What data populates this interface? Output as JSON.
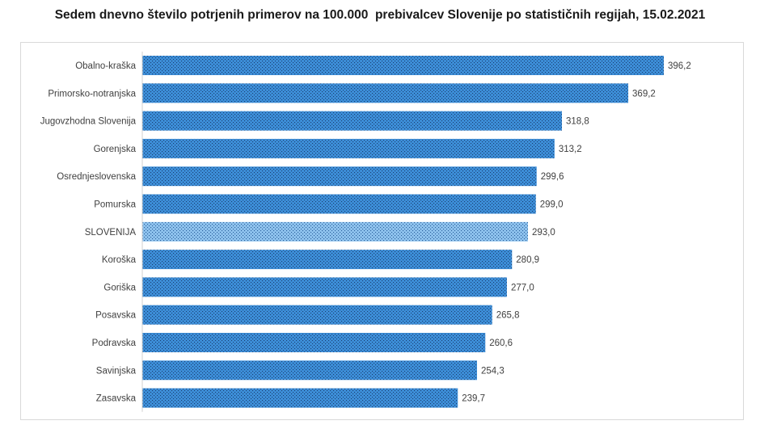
{
  "chart_data": {
    "type": "bar",
    "orientation": "horizontal",
    "title": "Sedem dnevno število potrjenih primerov na 100.000  prebivalcev Slovenije po statističnih regijah, 15.02.2021",
    "categories": [
      "Obalno-kraška",
      "Primorsko-notranjska",
      "Jugovzhodna Slovenija",
      "Gorenjska",
      "Osrednjeslovenska",
      "Pomurska",
      "SLOVENIJA",
      "Koroška",
      "Goriška",
      "Posavska",
      "Podravska",
      "Savinjska",
      "Zasavska"
    ],
    "values": [
      396.2,
      369.2,
      318.8,
      313.2,
      299.6,
      299.0,
      293.0,
      280.9,
      277.0,
      265.8,
      260.6,
      254.3,
      239.7
    ],
    "value_labels": [
      "396,2",
      "369,2",
      "318,8",
      "313,2",
      "299,6",
      "299,0",
      "293,0",
      "280,9",
      "277,0",
      "265,8",
      "260,6",
      "254,3",
      "239,7"
    ],
    "highlight_category": "SLOVENIJA",
    "xlim": [
      0,
      396.2
    ],
    "xlabel": "",
    "ylabel": "",
    "grid": false,
    "legend": "none",
    "colors": {
      "bar": "#3d8fd9",
      "bar_dots": "#1a3f73",
      "highlight_bar": "#8fc3ee",
      "highlight_dots": "#2a5f9c",
      "text": "#404040"
    }
  }
}
